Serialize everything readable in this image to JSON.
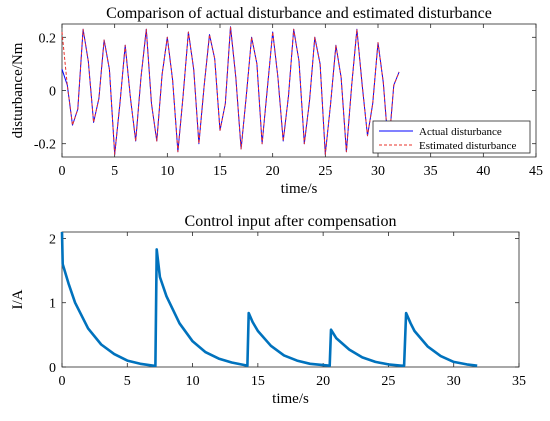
{
  "chart_data": [
    {
      "type": "line",
      "title": "Comparison of actual disturbance and estimated disturbance",
      "xlabel": "time/s",
      "ylabel": "disturbance/Nm",
      "xlim": [
        0,
        45
      ],
      "ylim": [
        -0.25,
        0.25
      ],
      "xticks": [
        0,
        5,
        10,
        15,
        20,
        25,
        30,
        35,
        40,
        45
      ],
      "yticks": [
        -0.2,
        0,
        0.2
      ],
      "ytick_labels": [
        "-0.2",
        "0",
        "0.2"
      ],
      "legend_position": "bottom-right",
      "series": [
        {
          "name": "Actual disturbance",
          "color": "#0000ff",
          "style": "solid",
          "x": [
            0,
            0.5,
            1,
            1.5,
            2,
            2.5,
            3,
            3.5,
            4,
            4.5,
            5,
            5.5,
            6,
            6.5,
            7,
            7.5,
            8,
            8.5,
            9,
            9.5,
            10,
            10.5,
            11,
            11.5,
            12,
            12.5,
            13,
            13.5,
            14,
            14.5,
            15,
            15.5,
            16,
            16.5,
            17,
            17.5,
            18,
            18.5,
            19,
            19.5,
            20,
            20.5,
            21,
            21.5,
            22,
            22.5,
            23,
            23.5,
            24,
            24.5,
            25,
            25.5,
            26,
            26.5,
            27,
            27.5,
            28,
            28.5,
            29,
            29.5,
            30,
            30.5,
            31,
            31.5,
            32
          ],
          "y": [
            0.08,
            0.02,
            -0.13,
            -0.07,
            0.23,
            0.11,
            -0.12,
            -0.03,
            0.19,
            0.08,
            -0.24,
            -0.05,
            0.17,
            -0.03,
            -0.19,
            0.05,
            0.23,
            -0.05,
            -0.19,
            0.06,
            0.2,
            0.04,
            -0.23,
            -0.02,
            0.22,
            0.08,
            -0.2,
            0.02,
            0.21,
            0.12,
            -0.15,
            -0.05,
            0.24,
            0.05,
            -0.22,
            -0.02,
            0.2,
            0.1,
            -0.2,
            0.01,
            0.22,
            0.05,
            -0.19,
            -0.02,
            0.23,
            0.11,
            -0.2,
            -0.04,
            0.2,
            0.1,
            -0.24,
            -0.05,
            0.17,
            0.05,
            -0.23,
            0.02,
            0.23,
            0.02,
            -0.17,
            -0.05,
            0.18,
            0.03,
            -0.22,
            0.02,
            0.07
          ]
        },
        {
          "name": "Estimated disturbance",
          "color": "#e8302a",
          "style": "dashed",
          "x": [
            0,
            0.5,
            1,
            1.5,
            2,
            2.5,
            3,
            3.5,
            4,
            4.5,
            5,
            5.5,
            6,
            6.5,
            7,
            7.5,
            8,
            8.5,
            9,
            9.5,
            10,
            10.5,
            11,
            11.5,
            12,
            12.5,
            13,
            13.5,
            14,
            14.5,
            15,
            15.5,
            16,
            16.5,
            17,
            17.5,
            18,
            18.5,
            19,
            19.5,
            20,
            20.5,
            21,
            21.5,
            22,
            22.5,
            23,
            23.5,
            24,
            24.5,
            25,
            25.5,
            26,
            26.5,
            27,
            27.5,
            28,
            28.5,
            29,
            29.5,
            30,
            30.5,
            31,
            31.5,
            32
          ],
          "y": [
            0.22,
            0.02,
            -0.13,
            -0.07,
            0.23,
            0.11,
            -0.12,
            -0.03,
            0.19,
            0.08,
            -0.24,
            -0.05,
            0.17,
            -0.03,
            -0.19,
            0.05,
            0.23,
            -0.05,
            -0.19,
            0.06,
            0.2,
            0.04,
            -0.23,
            -0.02,
            0.22,
            0.08,
            -0.2,
            0.02,
            0.21,
            0.12,
            -0.15,
            -0.05,
            0.24,
            0.05,
            -0.22,
            -0.02,
            0.2,
            0.1,
            -0.2,
            0.01,
            0.22,
            0.05,
            -0.19,
            -0.02,
            0.23,
            0.11,
            -0.2,
            -0.04,
            0.2,
            0.1,
            -0.24,
            -0.05,
            0.17,
            0.05,
            -0.23,
            0.02,
            0.23,
            0.02,
            -0.17,
            -0.05,
            0.18,
            0.03,
            -0.22,
            0.02,
            0.07
          ]
        }
      ]
    },
    {
      "type": "line",
      "title": "Control input after compensation",
      "xlabel": "time/s",
      "ylabel": "I/A",
      "xlim": [
        0,
        35
      ],
      "ylim": [
        0,
        2.1
      ],
      "xticks": [
        0,
        5,
        10,
        15,
        20,
        25,
        30,
        35
      ],
      "yticks": [
        0,
        1,
        2
      ],
      "ytick_labels": [
        "0",
        "1",
        "2"
      ],
      "series": [
        {
          "color": "#0072bd",
          "style": "solid",
          "x": [
            0,
            0.05,
            0.5,
            1,
            2,
            3,
            4,
            5,
            6,
            7,
            7.15,
            7.25,
            7.5,
            8,
            9,
            10,
            11,
            12,
            13,
            14,
            14.2,
            14.3,
            14.6,
            15,
            16,
            17,
            18,
            19,
            20,
            20.5,
            20.6,
            21,
            22,
            23,
            24,
            25,
            26,
            26.2,
            26.35,
            26.7,
            27,
            28,
            29,
            30,
            31,
            31.8
          ],
          "y": [
            2.1,
            1.6,
            1.3,
            1.0,
            0.6,
            0.35,
            0.2,
            0.1,
            0.05,
            0.02,
            0.02,
            1.83,
            1.4,
            1.1,
            0.68,
            0.4,
            0.23,
            0.13,
            0.07,
            0.03,
            0.02,
            0.84,
            0.7,
            0.56,
            0.33,
            0.18,
            0.1,
            0.05,
            0.03,
            0.02,
            0.58,
            0.45,
            0.27,
            0.15,
            0.08,
            0.04,
            0.02,
            0.02,
            0.84,
            0.68,
            0.56,
            0.32,
            0.17,
            0.08,
            0.04,
            0.02
          ]
        }
      ]
    }
  ]
}
